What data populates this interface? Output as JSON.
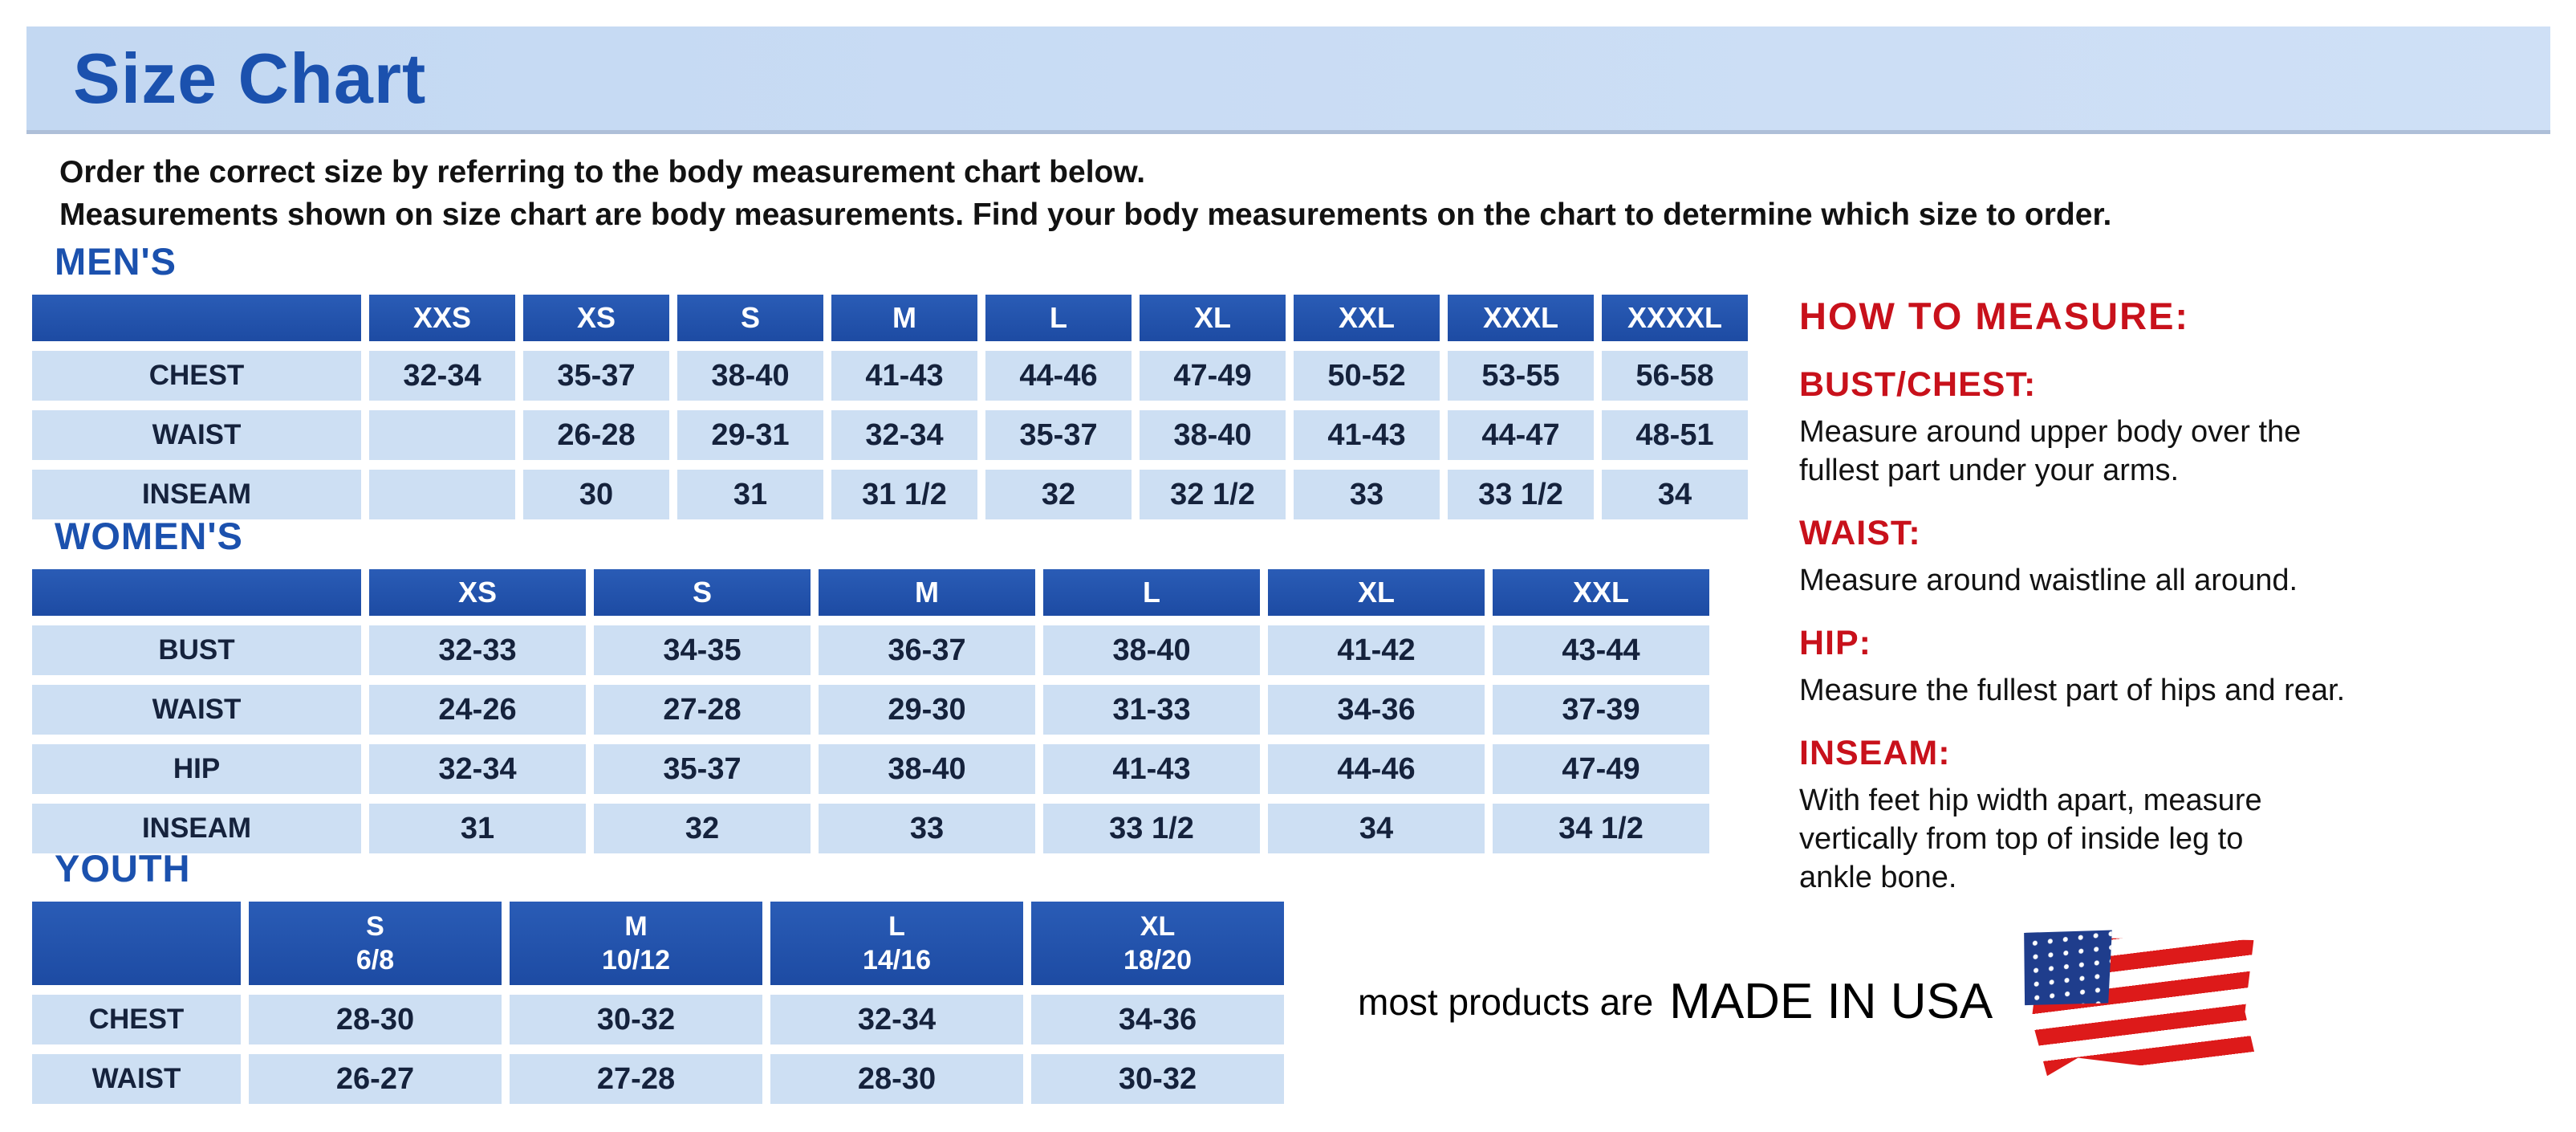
{
  "page": {
    "title": "Size Chart",
    "intro_line1": "Order the correct size by referring to the body measurement chart below.",
    "intro_line2": "Measurements shown on size chart are body measurements.  Find your body measurements on the chart to determine which size to order."
  },
  "sections": [
    {
      "title": "MEN'S",
      "columns": [
        "XXS",
        "XS",
        "S",
        "M",
        "L",
        "XL",
        "XXL",
        "XXXL",
        "XXXXL"
      ],
      "rows": [
        {
          "label": "CHEST",
          "values": [
            "32-34",
            "35-37",
            "38-40",
            "41-43",
            "44-46",
            "47-49",
            "50-52",
            "53-55",
            "56-58"
          ]
        },
        {
          "label": "WAIST",
          "values": [
            "",
            "26-28",
            "29-31",
            "32-34",
            "35-37",
            "38-40",
            "41-43",
            "44-47",
            "48-51"
          ]
        },
        {
          "label": "INSEAM",
          "values": [
            "",
            "30",
            "31",
            "31 1/2",
            "32",
            "32 1/2",
            "33",
            "33 1/2",
            "34"
          ]
        }
      ]
    },
    {
      "title": "WOMEN'S",
      "columns": [
        "XS",
        "S",
        "M",
        "L",
        "XL",
        "XXL"
      ],
      "rows": [
        {
          "label": "BUST",
          "values": [
            "32-33",
            "34-35",
            "36-37",
            "38-40",
            "41-42",
            "43-44"
          ]
        },
        {
          "label": "WAIST",
          "values": [
            "24-26",
            "27-28",
            "29-30",
            "31-33",
            "34-36",
            "37-39"
          ]
        },
        {
          "label": "HIP",
          "values": [
            "32-34",
            "35-37",
            "38-40",
            "41-43",
            "44-46",
            "47-49"
          ]
        },
        {
          "label": "INSEAM",
          "values": [
            "31",
            "32",
            "33",
            "33 1/2",
            "34",
            "34 1/2"
          ]
        }
      ]
    },
    {
      "title": "YOUTH",
      "columns": [
        {
          "size": "S",
          "range": "6/8"
        },
        {
          "size": "M",
          "range": "10/12"
        },
        {
          "size": "L",
          "range": "14/16"
        },
        {
          "size": "XL",
          "range": "18/20"
        }
      ],
      "rows": [
        {
          "label": "CHEST",
          "values": [
            "28-30",
            "30-32",
            "32-34",
            "34-36"
          ]
        },
        {
          "label": "WAIST",
          "values": [
            "26-27",
            "27-28",
            "28-30",
            "30-32"
          ]
        }
      ]
    }
  ],
  "how_to_measure": {
    "title": "HOW TO MEASURE:",
    "items": [
      {
        "label": "BUST/CHEST:",
        "text": "Measure around upper body over the\nfullest part under your arms."
      },
      {
        "label": "WAIST:",
        "text": "Measure around waistline all around."
      },
      {
        "label": "HIP:",
        "text": "Measure the fullest part of hips and rear."
      },
      {
        "label": "INSEAM:",
        "text": "With feet hip width apart, measure\nvertically from top of inside leg to\nankle bone."
      }
    ]
  },
  "footer": {
    "prefix": "most products are",
    "made_in": "MADE IN USA",
    "flag_icon": "usa-flag-icon"
  },
  "colors": {
    "banner-bg": "#c9dcf4",
    "title-blue": "#1b51ae",
    "header-blue": "#2153ad",
    "cell-blue": "#cddff3",
    "cell-text": "#15223c",
    "red": "#c8111b",
    "text": "#121212"
  }
}
